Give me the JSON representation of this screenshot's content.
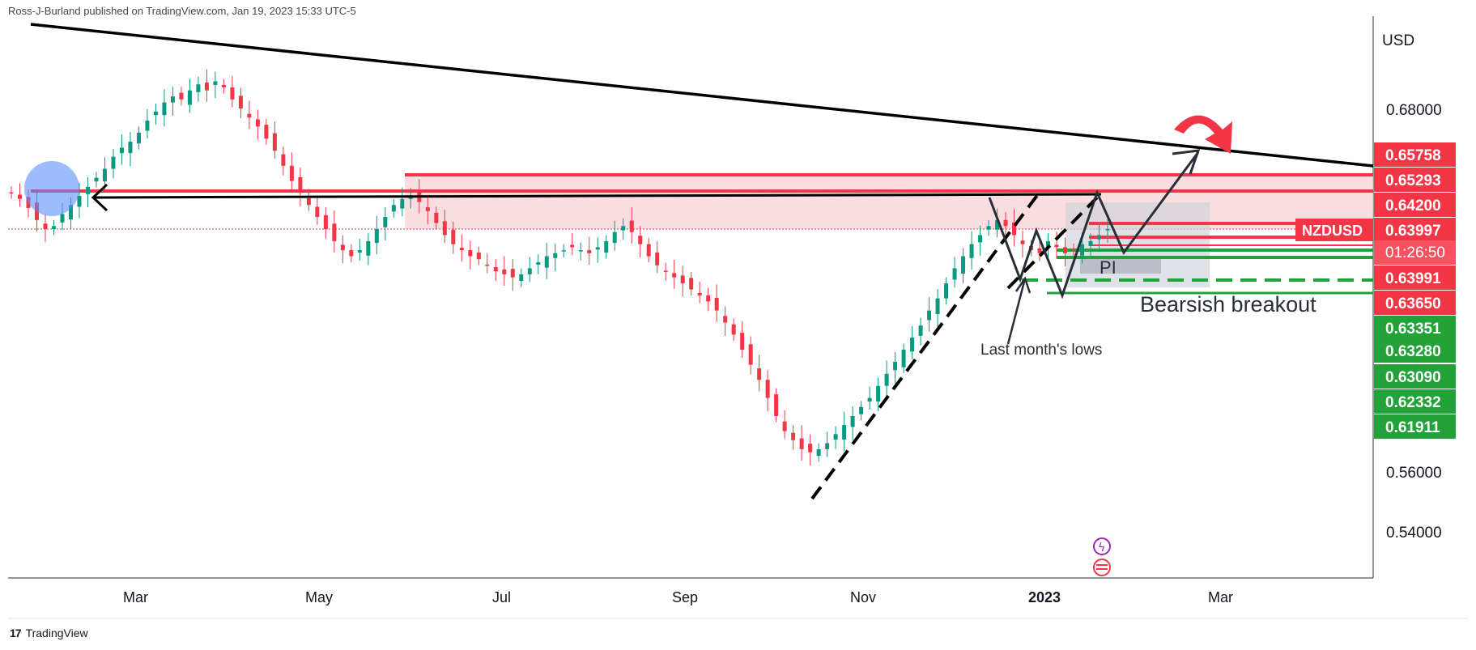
{
  "header": {
    "published_by": "Ross-J-Burland published on TradingView.com, Jan 19, 2023 15:33 UTC-5"
  },
  "footer": {
    "brand": "TradingView",
    "brand_mark": "17"
  },
  "chart_data": {
    "type": "candlestick",
    "symbol": "NZDUSD",
    "currency_label": "USD",
    "countdown": "01:26:50",
    "x_tick_labels": [
      "Mar",
      "May",
      "Jul",
      "Sep",
      "Nov",
      "2023",
      "Mar"
    ],
    "y_tick_labels": [
      "0.68000",
      "0.56000",
      "0.54000"
    ],
    "price_tags": [
      {
        "value": "0.65758",
        "color": "#f23645"
      },
      {
        "value": "0.65293",
        "color": "#f23645"
      },
      {
        "value": "0.64200",
        "color": "#f23645"
      },
      {
        "value": "0.63997",
        "color": "#f23645",
        "symbol_tag": true
      },
      {
        "value": "0.63991",
        "color": "#f23645"
      },
      {
        "value": "0.63650",
        "color": "#f23645"
      },
      {
        "value": "0.63351",
        "color": "#22a238"
      },
      {
        "value": "0.63280",
        "color": "#22a238"
      },
      {
        "value": "0.63090",
        "color": "#22a238"
      },
      {
        "value": "0.62332",
        "color": "#22a238"
      },
      {
        "value": "0.61911",
        "color": "#22a238"
      }
    ],
    "annotations": {
      "bearish": "Bearsish breakout",
      "lows": "Last month's lows",
      "pi": "PI"
    },
    "path_closes": [
      0.652,
      0.65,
      0.647,
      0.643,
      0.64,
      0.641,
      0.645,
      0.648,
      0.651,
      0.654,
      0.657,
      0.66,
      0.664,
      0.667,
      0.669,
      0.672,
      0.676,
      0.679,
      0.682,
      0.684,
      0.683,
      0.686,
      0.688,
      0.686,
      0.689,
      0.687,
      0.683,
      0.68,
      0.677,
      0.674,
      0.67,
      0.666,
      0.661,
      0.656,
      0.652,
      0.648,
      0.644,
      0.64,
      0.636,
      0.633,
      0.631,
      0.633,
      0.636,
      0.64,
      0.644,
      0.648,
      0.65,
      0.651,
      0.649,
      0.646,
      0.642,
      0.638,
      0.635,
      0.633,
      0.631,
      0.63,
      0.628,
      0.626,
      0.625,
      0.624,
      0.625,
      0.627,
      0.629,
      0.631,
      0.632,
      0.633,
      0.634,
      0.633,
      0.632,
      0.634,
      0.636,
      0.639,
      0.641,
      0.639,
      0.635,
      0.631,
      0.628,
      0.626,
      0.624,
      0.622,
      0.62,
      0.618,
      0.616,
      0.613,
      0.609,
      0.605,
      0.6,
      0.595,
      0.59,
      0.584,
      0.578,
      0.573,
      0.57,
      0.567,
      0.566,
      0.567,
      0.569,
      0.572,
      0.575,
      0.578,
      0.581,
      0.584,
      0.588,
      0.592,
      0.596,
      0.6,
      0.604,
      0.608,
      0.613,
      0.617,
      0.622,
      0.627,
      0.631,
      0.635,
      0.638,
      0.641,
      0.643,
      0.641,
      0.638,
      0.635,
      0.633,
      0.632,
      0.636,
      0.634,
      0.632,
      0.633,
      0.635,
      0.636,
      0.638,
      0.64
    ]
  }
}
